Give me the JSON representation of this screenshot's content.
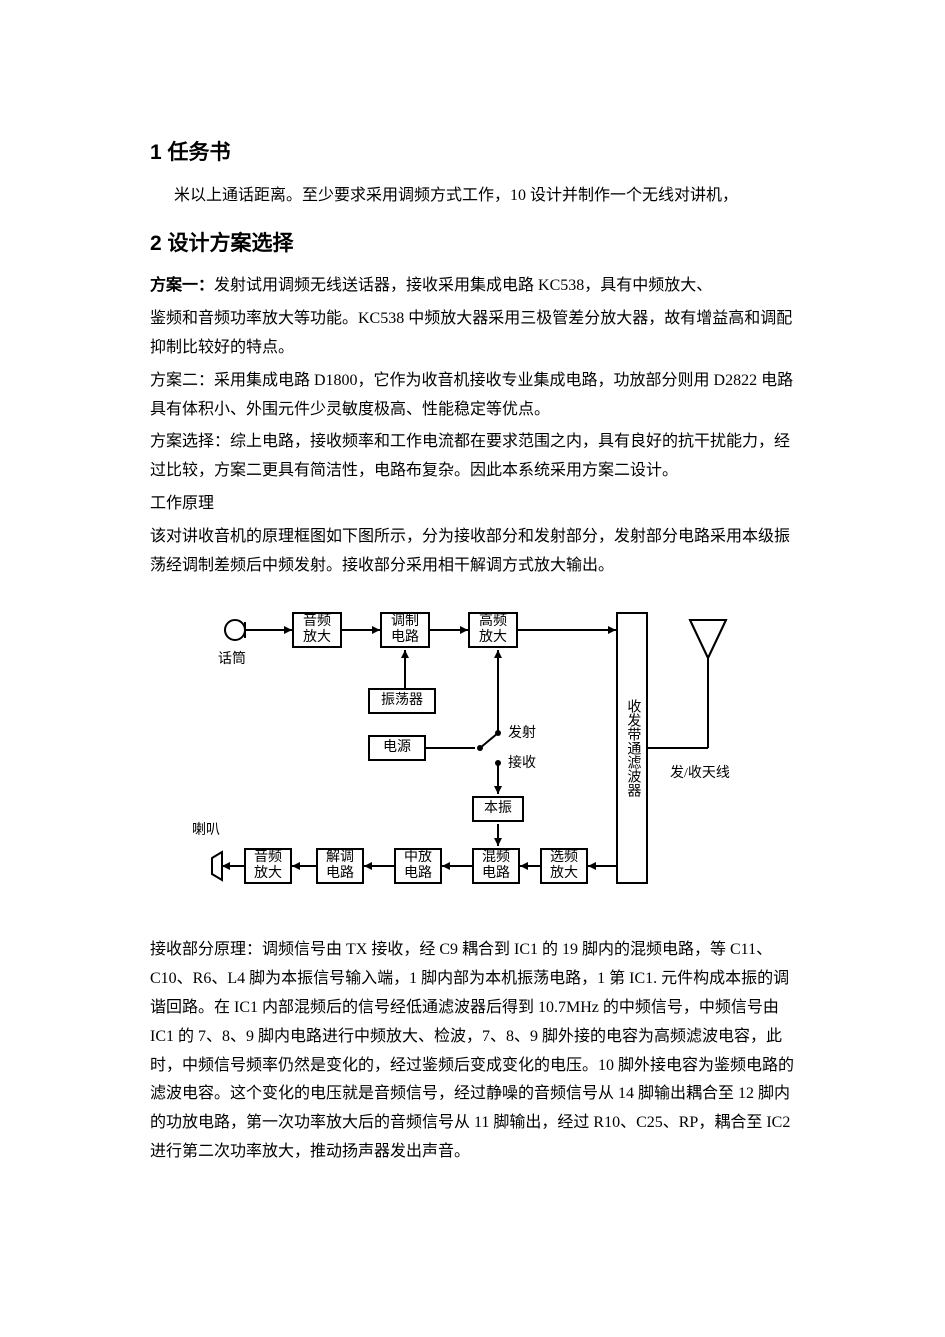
{
  "doc": {
    "h1": "1 任务书",
    "p1": "米以上通话距离。至少要求采用调频方式工作，10 设计并制作一个无线对讲机，",
    "h2": "2 设计方案选择",
    "p2a": "方案一：",
    "p2b": "发射试用调频无线送话器，接收采用集成电路 KC538，具有中频放大、",
    "p3": "鉴频和音频功率放大等功能。KC538 中频放大器采用三极管差分放大器，故有增益高和调配抑制比较好的特点。",
    "p4": "方案二：采用集成电路 D1800，它作为收音机接收专业集成电路，功放部分则用 D2822 电路具有体积小、外围元件少灵敏度极高、性能稳定等优点。",
    "p5": "方案选择：综上电路，接收频率和工作电流都在要求范围之内，具有良好的抗干扰能力，经过比较，方案二更具有简洁性，电路布复杂。因此本系统采用方案二设计。",
    "p6": "工作原理",
    "p7": "该对讲收音机的原理框图如下图所示，分为接收部分和发射部分，发射部分电路采用本级振荡经调制差频后中频发射。接收部分采用相干解调方式放大输出。",
    "p8": "接收部分原理：调频信号由 TX 接收，经 C9 耦合到 IC1 的 19 脚内的混频电路，等 C11、C10、R6、L4 脚为本振信号输入端，1 脚内部为本机振荡电路，1 第 IC1. 元件构成本振的调谐回路。在 IC1 内部混频后的信号经低通滤波器后得到 10.7MHz 的中频信号，中频信号由 IC1 的 7、8、9 脚内电路进行中频放大、检波，7、8、9 脚外接的电容为高频滤波电容，此时，中频信号频率仍然是变化的，经过鉴频后变成变化的电压。10 脚外接电容为鉴频电路的滤波电容。这个变化的电压就是音频信号，经过静噪的音频信号从 14 脚输出耦合至 12 脚内的功放电路，第一次功率放大后的音频信号从 11 脚输出，经过 R10、C25、RP，耦合至 IC2 进行第二次功率放大，推动扬声器发出声音。"
  },
  "diagram": {
    "mic_label": "话筒",
    "spk_label": "喇叭",
    "amp_audio1": "音频\n放大",
    "modulator": "调制\n电路",
    "hf_amp": "高频\n放大",
    "oscillator": "振荡器",
    "power": "电源",
    "amp_audio2": "音频\n放大",
    "demod": "解调\n电路",
    "if_amp": "中放\n电路",
    "mixer": "混频\n电路",
    "sel_amp": "选频\n放大",
    "local_osc": "本振",
    "filter_box": "收发带通滤波器",
    "antenna_label": "发/收天线",
    "tx_label": "发射",
    "rx_label": "接收"
  }
}
